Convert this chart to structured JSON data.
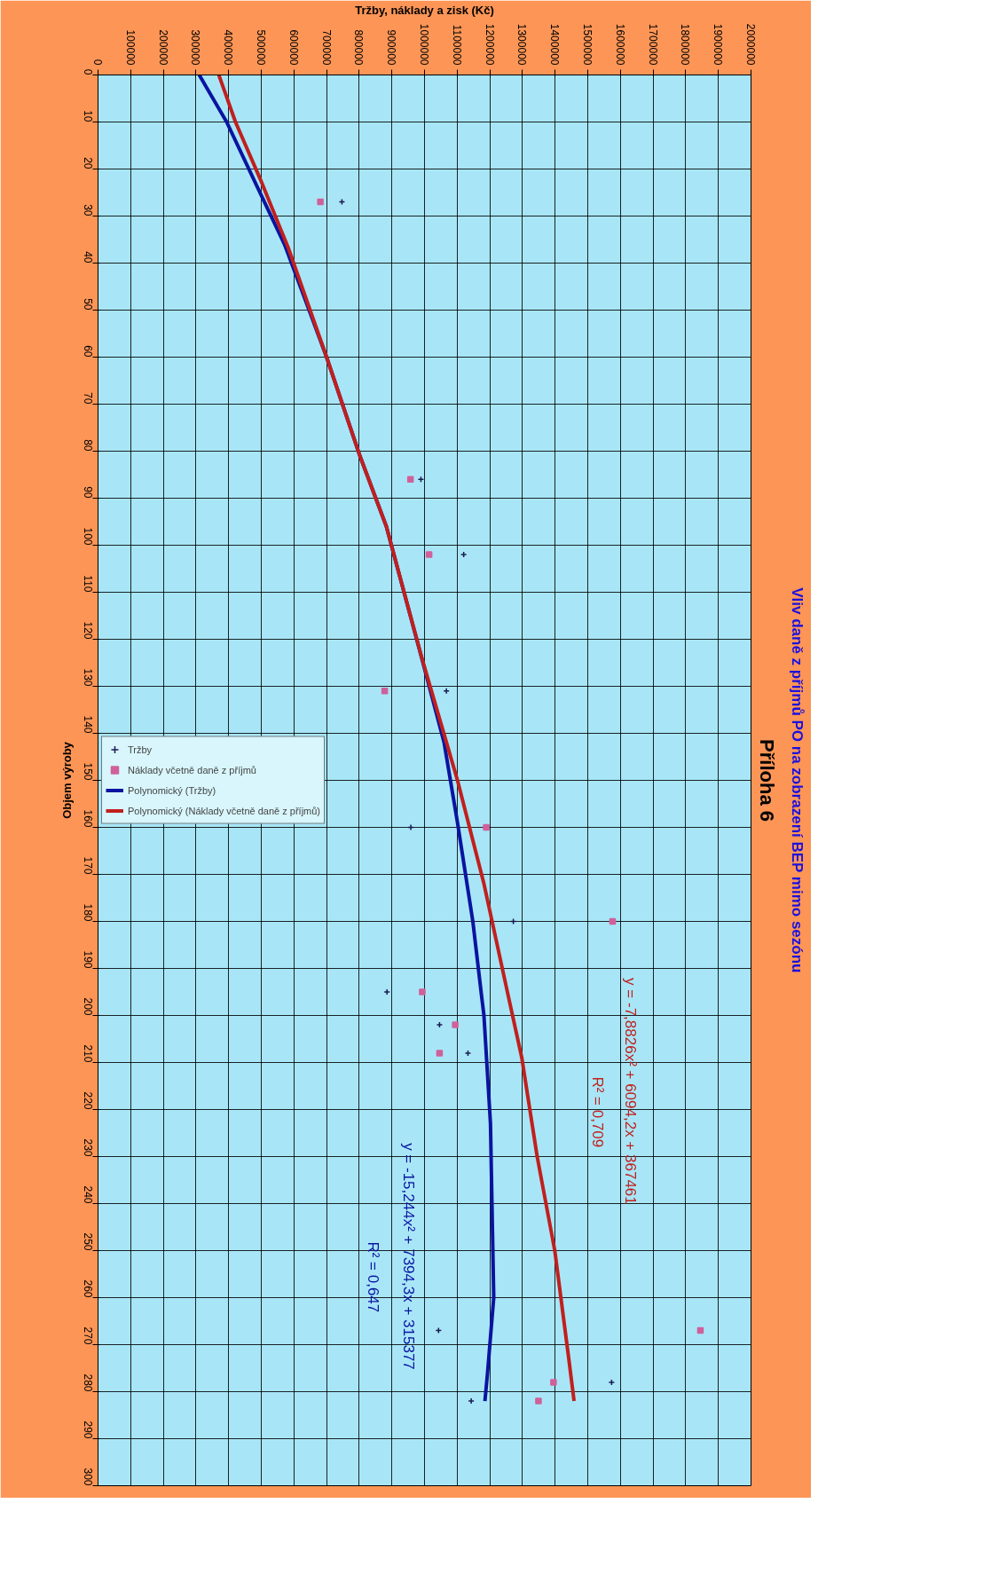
{
  "chart_data": {
    "type": "scatter",
    "title": "Příloha 6",
    "subtitle": "Vliv daně z příjmů PO na zobrazení BEP mimo sezónu",
    "xlabel": "Tržby, náklady a zisk (Kč)",
    "ylabel": "Objem výroby",
    "series": [
      {
        "name": "Tržby",
        "color": "#1a1a50",
        "marker": "cross",
        "x": [
          747000,
          989000,
          1120000,
          1067000,
          958000,
          1272000,
          885000,
          1046000,
          1133000,
          1043000,
          1573000,
          1143000
        ],
        "values": [
          27,
          86,
          102,
          131,
          160,
          180,
          195,
          202,
          208,
          267,
          278,
          282
        ]
      },
      {
        "name": "Náklady včetně daně z příjmů",
        "color": "#d0609a",
        "marker": "square",
        "x": [
          681000,
          957000,
          1014000,
          878000,
          1189000,
          1576000,
          993000,
          1094000,
          1046000,
          1845000,
          1395000,
          1349000
        ],
        "values": [
          27,
          86,
          102,
          131,
          160,
          180,
          195,
          202,
          208,
          267,
          278,
          282
        ]
      },
      {
        "name": "Polynomický (Tržby)",
        "type": "line",
        "color": "#0a14a0",
        "x": [
          310000,
          394000,
          489000,
          571000,
          625000,
          700000,
          802000,
          883000,
          999000,
          1060000,
          1101000,
          1148000,
          1175000,
          1182000,
          1202000,
          1212000,
          1193000,
          1185000
        ],
        "values": [
          0,
          10,
          24,
          36,
          46,
          60,
          81,
          96,
          126,
          142,
          159,
          180,
          196,
          200,
          223,
          260,
          276,
          282
        ]
      },
      {
        "name": "Polynomický (Náklady včetně daně z příjmů)",
        "type": "line",
        "color": "#c0201e",
        "x": [
          370000,
          421000,
          496000,
          584000,
          700000,
          802000,
          883000,
          992000,
          1101000,
          1182000,
          1257000,
          1298000,
          1345000,
          1399000,
          1440000,
          1458000
        ],
        "values": [
          0,
          10,
          22,
          37,
          60,
          81,
          96,
          124,
          150,
          172,
          196,
          209,
          230,
          250,
          272,
          282
        ]
      }
    ],
    "annotations": [
      "y = -7,8826x² + 6094,2x + 367461",
      "R² = 0,709",
      "y = -15,244x² + 7394,3x + 315377",
      "R² = 0,647"
    ],
    "xlim": [
      0,
      2000000
    ],
    "ylim": [
      300,
      0
    ],
    "xticks": [
      0,
      100000,
      200000,
      300000,
      400000,
      500000,
      600000,
      700000,
      800000,
      900000,
      1000000,
      1100000,
      1200000,
      1300000,
      1400000,
      1500000,
      1600000,
      1700000,
      1800000,
      1900000,
      2000000
    ],
    "yticks": [
      0,
      10,
      20,
      30,
      40,
      50,
      60,
      70,
      80,
      90,
      100,
      110,
      120,
      130,
      140,
      150,
      160,
      170,
      180,
      190,
      200,
      210,
      220,
      230,
      240,
      250,
      260,
      270,
      280,
      290,
      300
    ],
    "grid": true,
    "legend": "left"
  }
}
